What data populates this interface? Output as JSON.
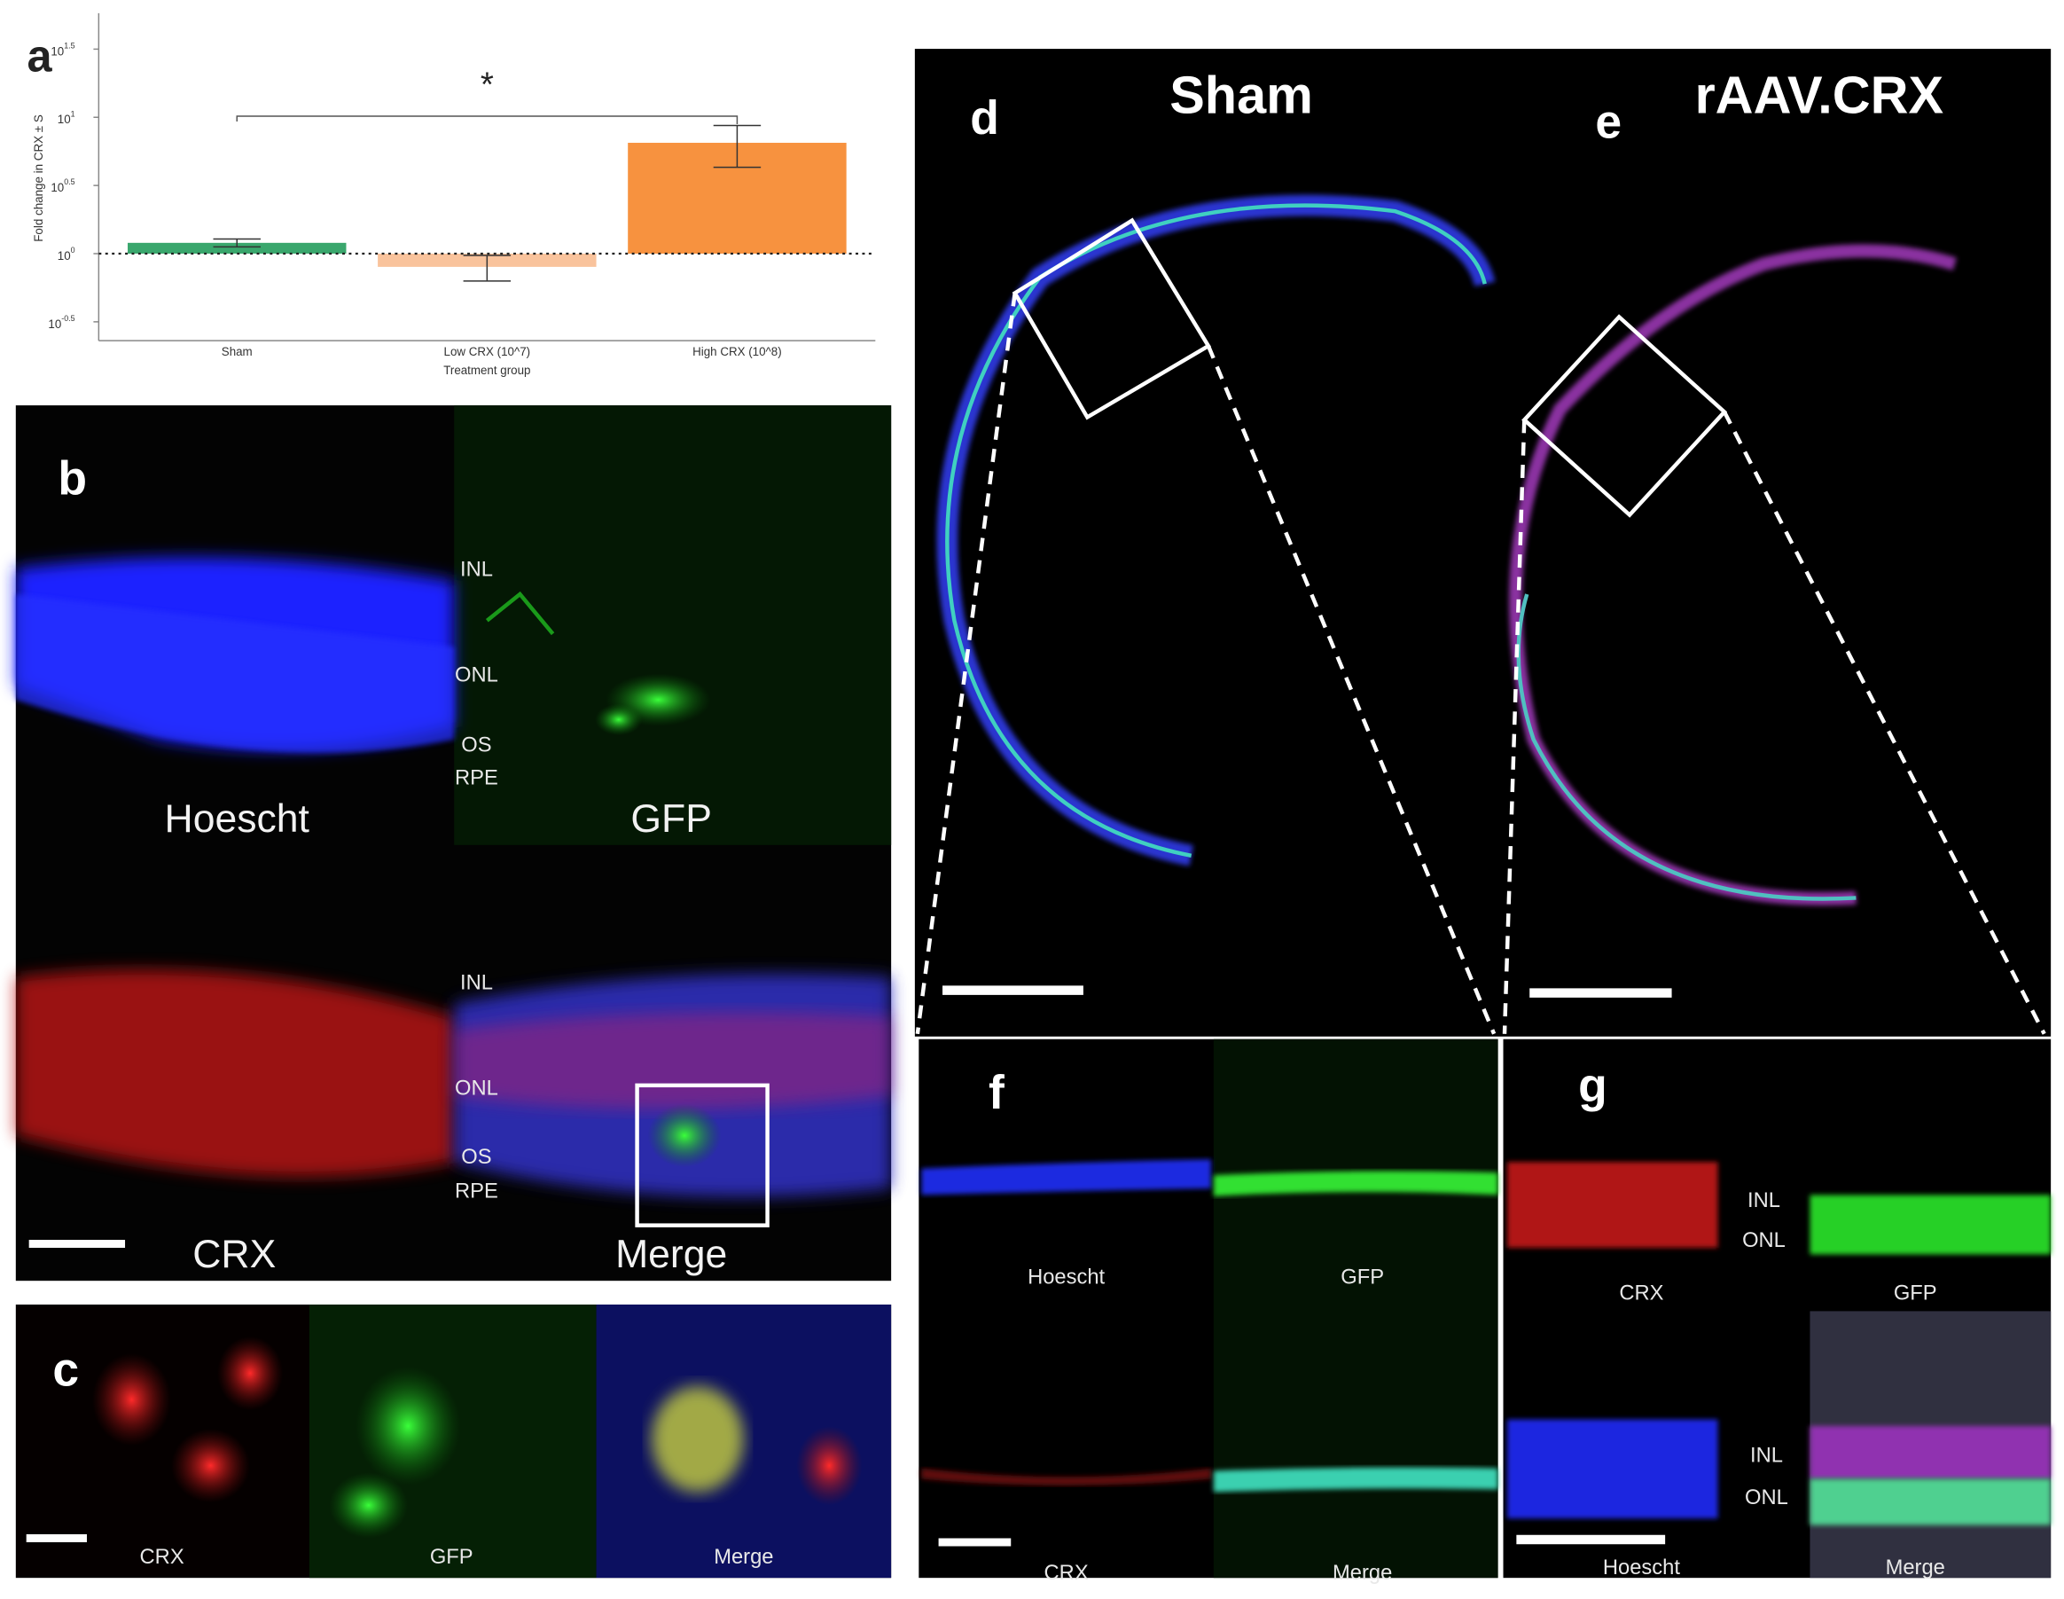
{
  "chart_data": {
    "type": "bar",
    "y_label": "Fold change in CRX ± S",
    "x_label": "Treatment group",
    "categories": [
      "Sham",
      "Low CRX (10^7)",
      "High CRX (10^8)"
    ],
    "values": [
      1.2,
      0.8,
      6.5
    ],
    "errors": [
      0.08,
      0.17,
      2.2
    ],
    "colors": [
      "#3aa76d",
      "#f9c39c",
      "#f7923f"
    ],
    "ylim": [
      0.23,
      58
    ],
    "log_scale": true,
    "yticks": [
      {
        "value": 0.3162,
        "label": "10",
        "exponent": "-0.5"
      },
      {
        "value": 1,
        "label": "10",
        "exponent": "0"
      },
      {
        "value": 3.162,
        "label": "10",
        "exponent": "0.5"
      },
      {
        "value": 10,
        "label": "10",
        "exponent": "1"
      },
      {
        "value": 31.62,
        "label": "10",
        "exponent": "1.5"
      }
    ],
    "reference_line": 1,
    "annotation": "*"
  },
  "panels": {
    "a": {
      "letter": "a"
    },
    "b": {
      "letter": "b",
      "channels": [
        "Hoescht",
        "GFP",
        "CRX",
        "Merge"
      ],
      "layers_top": [
        "INL",
        "ONL",
        "OS",
        "RPE"
      ],
      "layers_bottom": [
        "INL",
        "ONL",
        "OS",
        "RPE"
      ]
    },
    "c": {
      "letter": "c",
      "channels": [
        "CRX",
        "GFP",
        "Merge"
      ]
    },
    "d": {
      "letter": "d",
      "title": "Sham"
    },
    "e": {
      "letter": "e",
      "title": "rAAV.CRX"
    },
    "f": {
      "letter": "f",
      "channels": [
        "Hoescht",
        "GFP",
        "CRX",
        "Merge"
      ]
    },
    "g": {
      "letter": "g",
      "channels": [
        "CRX",
        "GFP",
        "Hoescht",
        "Merge"
      ],
      "layers_top": [
        "INL",
        "ONL"
      ],
      "layers_bottom": [
        "INL",
        "ONL"
      ]
    }
  }
}
